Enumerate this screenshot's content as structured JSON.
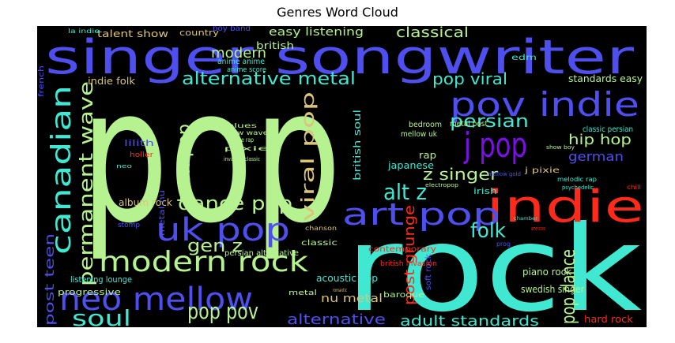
{
  "chart_data": {
    "type": "wordcloud",
    "title": "Genres Word Cloud",
    "background": "#000000",
    "palette": [
      "#b6f28f",
      "#4f4ff0",
      "#40e8d2",
      "#ff2a1a",
      "#7a0fe8",
      "#d9c47a"
    ],
    "words": [
      {
        "text": "pop",
        "c": "#b6f28f"
      },
      {
        "text": "rock",
        "c": "#40e8d2"
      },
      {
        "text": "singer songwriter",
        "c": "#4f4ff0"
      },
      {
        "text": "indie",
        "c": "#ff2a1a"
      },
      {
        "text": "pov indie",
        "c": "#4f4ff0"
      },
      {
        "text": "j pop",
        "c": "#7a0fe8"
      },
      {
        "text": "art pop",
        "c": "#4f4ff0"
      },
      {
        "text": "uk pop",
        "c": "#4f4ff0"
      },
      {
        "text": "neo mellow",
        "c": "#4f4ff0"
      },
      {
        "text": "modern rock",
        "c": "#b6f28f"
      },
      {
        "text": "canadian",
        "c": "#40e8d2"
      },
      {
        "text": "permanent wave",
        "c": "#b6f28f"
      },
      {
        "text": "alternative metal",
        "c": "#40e8d2"
      },
      {
        "text": "dance pop",
        "c": "#b6f28f"
      },
      {
        "text": "viral pop",
        "c": "#d9c47a"
      },
      {
        "text": "pop pov",
        "c": "#b6f28f"
      },
      {
        "text": "soul",
        "c": "#40e8d2"
      },
      {
        "text": "alt z",
        "c": "#40e8d2"
      },
      {
        "text": "persian",
        "c": "#40e8d2"
      },
      {
        "text": "folk",
        "c": "#40e8d2"
      },
      {
        "text": "pop dance",
        "c": "#b6f28f"
      },
      {
        "text": "teen pop",
        "c": "#b6f28f"
      },
      {
        "text": "gen z",
        "c": "#b6f28f"
      },
      {
        "text": "z singer",
        "c": "#b6f28f"
      },
      {
        "text": "pop viral",
        "c": "#40e8d2"
      },
      {
        "text": "hip hop",
        "c": "#b6f28f"
      },
      {
        "text": "german",
        "c": "#4f4ff0"
      },
      {
        "text": "post grunge",
        "c": "#ff2a1a"
      },
      {
        "text": "adult standards",
        "c": "#40e8d2"
      },
      {
        "text": "alternative",
        "c": "#4f4ff0"
      },
      {
        "text": "post teen",
        "c": "#4f4ff0"
      },
      {
        "text": "classical",
        "c": "#b6f28f"
      },
      {
        "text": "modern",
        "c": "#b6f28f"
      },
      {
        "text": "easy listening",
        "c": "#b6f28f"
      },
      {
        "text": "british soul",
        "c": "#40e8d2"
      },
      {
        "text": "nu metal",
        "c": "#d9c47a"
      },
      {
        "text": "talent show",
        "c": "#d9c47a"
      },
      {
        "text": "country",
        "c": "#d9c47a"
      },
      {
        "text": "boy band",
        "c": "#4f4ff0"
      },
      {
        "text": "british",
        "c": "#b6f28f"
      },
      {
        "text": "anime anime",
        "c": "#40e8d2"
      },
      {
        "text": "anime score",
        "c": "#40e8d2"
      },
      {
        "text": "indie folk",
        "c": "#d9c47a"
      },
      {
        "text": "standards easy",
        "c": "#b6f28f"
      },
      {
        "text": "metal post",
        "c": "#b6f28f"
      },
      {
        "text": "rap",
        "c": "#b6f28f"
      },
      {
        "text": "japanese",
        "c": "#40e8d2"
      },
      {
        "text": "mellow uk",
        "c": "#b6f28f"
      },
      {
        "text": "bedroom",
        "c": "#b6f28f"
      },
      {
        "text": "j pixie",
        "c": "#d9c47a"
      },
      {
        "text": "classic persian",
        "c": "#40e8d2"
      },
      {
        "text": "album rock",
        "c": "#d9c47a"
      },
      {
        "text": "metal nu",
        "c": "#4f4ff0"
      },
      {
        "text": "classic",
        "c": "#b6f28f"
      },
      {
        "text": "persian alternative",
        "c": "#b6f28f"
      },
      {
        "text": "contemporary",
        "c": "#ff2a1a"
      },
      {
        "text": "irish",
        "c": "#40e8d2"
      },
      {
        "text": "acoustic pop",
        "c": "#40e8d2"
      },
      {
        "text": "listening lounge",
        "c": "#40e8d2"
      },
      {
        "text": "piano rock",
        "c": "#b6f28f"
      },
      {
        "text": "swedish singer",
        "c": "#b6f28f"
      },
      {
        "text": "soft rock",
        "c": "#4f4ff0"
      },
      {
        "text": "hard rock",
        "c": "#ff2a1a"
      },
      {
        "text": "progressive",
        "c": "#b6f28f"
      },
      {
        "text": "baroque",
        "c": "#b6f28f"
      },
      {
        "text": "metal",
        "c": "#b6f28f"
      },
      {
        "text": "british invasion",
        "c": "#ff2a1a"
      },
      {
        "text": "prog",
        "c": "#4f4ff0"
      },
      {
        "text": "chanson",
        "c": "#d9c47a"
      },
      {
        "text": "stomp",
        "c": "#4f4ff0"
      },
      {
        "text": "lilith",
        "c": "#4f4ff0"
      },
      {
        "text": "holler",
        "c": "#ff2a1a"
      },
      {
        "text": "blues",
        "c": "#b6f28f"
      },
      {
        "text": "new wave",
        "c": "#b6f28f"
      },
      {
        "text": "grunge rap",
        "c": "#b6f28f"
      },
      {
        "text": "pixie j",
        "c": "#b6f28f"
      },
      {
        "text": "invasion classic",
        "c": "#b6f28f"
      },
      {
        "text": "mellow gold",
        "c": "#4f4ff0"
      },
      {
        "text": "electropop",
        "c": "#b6f28f"
      },
      {
        "text": "melodic rap",
        "c": "#40e8d2"
      },
      {
        "text": "psychedelic",
        "c": "#40e8d2"
      },
      {
        "text": "chamber",
        "c": "#40e8d2"
      },
      {
        "text": "show boy",
        "c": "#b6f28f"
      },
      {
        "text": "americana",
        "c": "#ff2a1a"
      },
      {
        "text": "edm",
        "c": "#40e8d2"
      },
      {
        "text": "french",
        "c": "#4f4ff0"
      },
      {
        "text": "la indie",
        "c": "#40e8d2"
      },
      {
        "text": "romantic",
        "c": "#d9c47a"
      },
      {
        "text": "chill",
        "c": "#ff2a1a"
      },
      {
        "text": "neo",
        "c": "#40e8d2"
      },
      {
        "text": "jazz",
        "c": "#4f4ff0"
      }
    ]
  }
}
